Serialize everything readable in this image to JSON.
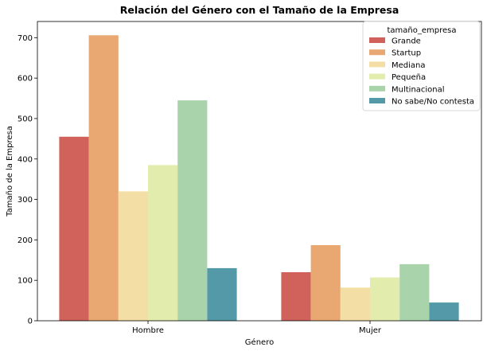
{
  "chart_data": {
    "type": "bar",
    "title": "Relación del Género con el Tamaño de la Empresa",
    "xlabel": "Género",
    "ylabel": "Tamaño de la Empresa",
    "categories": [
      "Hombre",
      "Mujer"
    ],
    "ylim": [
      0,
      740
    ],
    "yticks": [
      0,
      100,
      200,
      300,
      400,
      500,
      600,
      700
    ],
    "grid": false,
    "legend": {
      "title": "tamaño_empresa",
      "placement": "top-right"
    },
    "series": [
      {
        "name": "Grande",
        "color": "#d0615b",
        "values": [
          455,
          120
        ]
      },
      {
        "name": "Startup",
        "color": "#e9a771",
        "values": [
          706,
          187
        ]
      },
      {
        "name": "Mediana",
        "color": "#f3dea5",
        "values": [
          320,
          82
        ]
      },
      {
        "name": "Pequeña",
        "color": "#e2ecad",
        "values": [
          385,
          107
        ]
      },
      {
        "name": "Multinacional",
        "color": "#a9d3aa",
        "values": [
          545,
          140
        ]
      },
      {
        "name": "No sabe/No contesta",
        "color": "#5399a8",
        "values": [
          130,
          45
        ]
      }
    ]
  }
}
